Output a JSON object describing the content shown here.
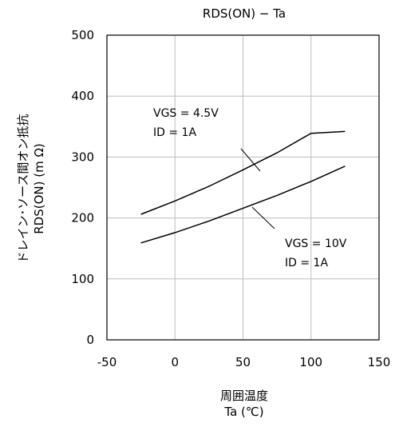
{
  "chart_data": {
    "type": "line",
    "title": "RDS(ON) − Ta",
    "xlabel": [
      "周囲温度",
      "Ta (℃)"
    ],
    "ylabel": [
      "ドレイン･ソース間オン抵抗",
      "RDS(ON) (m Ω)"
    ],
    "xlim": [
      -50,
      150
    ],
    "ylim": [
      0,
      500
    ],
    "xticks": [
      -50,
      0,
      50,
      100,
      150
    ],
    "yticks": [
      0,
      100,
      200,
      300,
      400,
      500
    ],
    "xtick_labels": [
      "-50",
      "0",
      "50",
      "100",
      "150"
    ],
    "ytick_labels": [
      "0",
      "100",
      "200",
      "300",
      "400",
      "500"
    ],
    "grid": true,
    "series": [
      {
        "x": [
          -25,
          0,
          25,
          50,
          75,
          100,
          125
        ],
        "values": [
          206,
          228,
          252,
          279,
          307,
          339,
          342
        ],
        "annotation": [
          "VGS = 4.5V",
          "ID = 1A"
        ]
      },
      {
        "x": [
          -25,
          0,
          25,
          50,
          75,
          100,
          125
        ],
        "values": [
          159,
          176,
          195,
          216,
          237,
          260,
          285
        ],
        "annotation": [
          "VGS = 10V",
          "ID = 1A"
        ]
      }
    ]
  }
}
